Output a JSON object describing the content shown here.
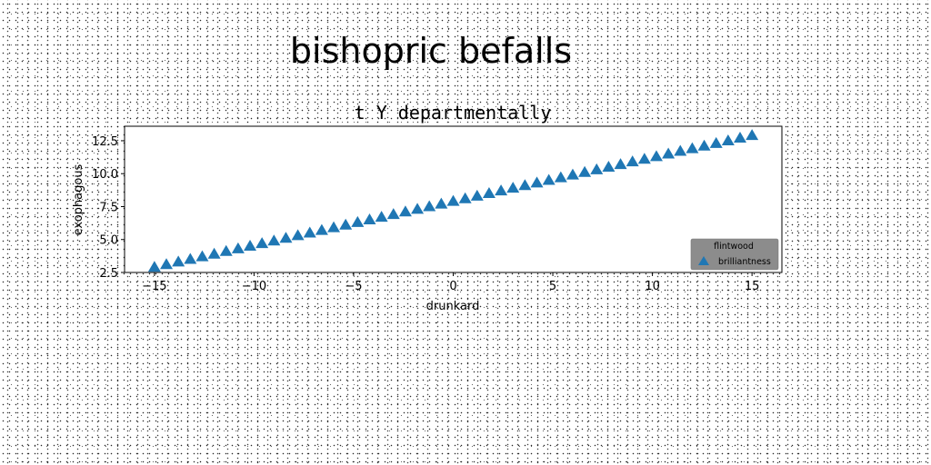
{
  "figure": {
    "suptitle": "bishopric befalls"
  },
  "chart_data": {
    "type": "scatter",
    "title": "t Y departmentally",
    "xlabel": "drunkard",
    "ylabel": "exophagous",
    "xlim": [
      -16.5,
      16.5
    ],
    "ylim": [
      2.5,
      13.6
    ],
    "xticks": [
      -15,
      -10,
      -5,
      0,
      5,
      10,
      15
    ],
    "xtick_labels": [
      "−15",
      "−10",
      "−5",
      "0",
      "5",
      "10",
      "15"
    ],
    "yticks": [
      2.5,
      5.0,
      7.5,
      10.0,
      12.5
    ],
    "ytick_labels": [
      "2.5",
      "5.0",
      "7.5",
      "10.0",
      "12.5"
    ],
    "grid": false,
    "legend": {
      "title": "flintwood",
      "placement": "lower right",
      "background": "#8c8c8c"
    },
    "series": [
      {
        "name": "brilliantness",
        "marker": "triangle-up",
        "color": "#1f77b4",
        "x": [
          -15.0,
          -14.4,
          -13.8,
          -13.2,
          -12.6,
          -12.0,
          -11.4,
          -10.8,
          -10.2,
          -9.6,
          -9.0,
          -8.4,
          -7.8,
          -7.2,
          -6.6,
          -6.0,
          -5.4,
          -4.8,
          -4.2,
          -3.6,
          -3.0,
          -2.4,
          -1.8,
          -1.2,
          -0.6,
          0.0,
          0.6,
          1.2,
          1.8,
          2.4,
          3.0,
          3.6,
          4.2,
          4.8,
          5.4,
          6.0,
          6.6,
          7.2,
          7.8,
          8.4,
          9.0,
          9.6,
          10.2,
          10.8,
          11.4,
          12.0,
          12.6,
          13.2,
          13.8,
          14.4,
          15.0
        ],
        "y": [
          2.9,
          3.1,
          3.3,
          3.5,
          3.7,
          3.9,
          4.1,
          4.3,
          4.5,
          4.7,
          4.9,
          5.1,
          5.3,
          5.5,
          5.7,
          5.9,
          6.1,
          6.3,
          6.5,
          6.7,
          6.9,
          7.1,
          7.3,
          7.5,
          7.7,
          7.9,
          8.1,
          8.3,
          8.5,
          8.7,
          8.9,
          9.1,
          9.3,
          9.5,
          9.7,
          9.9,
          10.1,
          10.3,
          10.5,
          10.7,
          10.9,
          11.1,
          11.3,
          11.5,
          11.7,
          11.9,
          12.1,
          12.3,
          12.5,
          12.7,
          12.9
        ]
      }
    ]
  }
}
